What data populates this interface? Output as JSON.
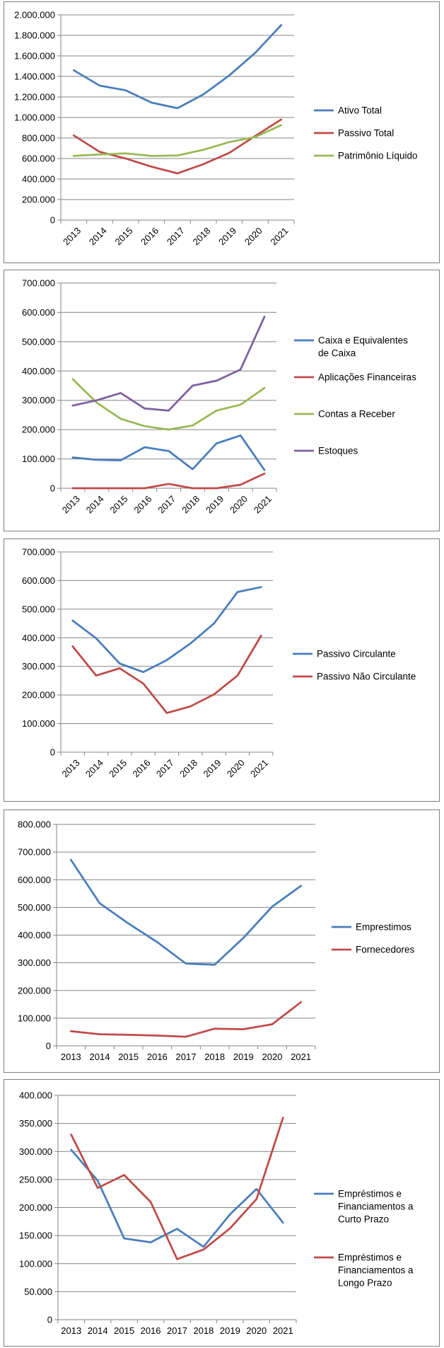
{
  "chart_data": [
    {
      "type": "line",
      "categories": [
        "2013",
        "2014",
        "2015",
        "2016",
        "2017",
        "2018",
        "2019",
        "2020",
        "2021"
      ],
      "ylim": [
        0,
        2000000
      ],
      "yticks": [
        0,
        200000,
        400000,
        600000,
        800000,
        1000000,
        1200000,
        1400000,
        1600000,
        1800000,
        2000000
      ],
      "ytick_labels": [
        "0",
        "200.000",
        "400.000",
        "600.000",
        "800.000",
        "1.000.000",
        "1.200.000",
        "1.400.000",
        "1.600.000",
        "1.800.000",
        "2.000.000"
      ],
      "rotated_x_labels": true,
      "gridlines": true,
      "legend_position": "right",
      "series": [
        {
          "name": "Ativo Total",
          "color": "#4a7ebb",
          "values": [
            1460000,
            1310000,
            1265000,
            1145000,
            1090000,
            1225000,
            1410000,
            1630000,
            1900000
          ]
        },
        {
          "name": "Passivo Total",
          "color": "#be4b48",
          "values": [
            825000,
            665000,
            600000,
            520000,
            455000,
            545000,
            655000,
            820000,
            980000
          ]
        },
        {
          "name": "Patrimônio Líquido",
          "color": "#98b954",
          "values": [
            625000,
            640000,
            650000,
            625000,
            630000,
            685000,
            760000,
            810000,
            925000
          ]
        }
      ]
    },
    {
      "type": "line",
      "categories": [
        "2013",
        "2014",
        "2015",
        "2016",
        "2017",
        "2018",
        "2019",
        "2020",
        "2021"
      ],
      "ylim": [
        0,
        700000
      ],
      "yticks": [
        0,
        100000,
        200000,
        300000,
        400000,
        500000,
        600000,
        700000
      ],
      "ytick_labels": [
        "0",
        "100.000",
        "200.000",
        "300.000",
        "400.000",
        "500.000",
        "600.000",
        "700.000"
      ],
      "rotated_x_labels": true,
      "gridlines": true,
      "legend_position": "right",
      "series": [
        {
          "name": "Caixa e Equivalentes de Caixa",
          "legend_lines": [
            "Caixa e Equivalentes",
            "de Caixa"
          ],
          "color": "#4a7ebb",
          "values": [
            105000,
            97000,
            95000,
            140000,
            127000,
            65000,
            153000,
            180000,
            62000
          ]
        },
        {
          "name": "Aplicações Financeiras",
          "color": "#be4b48",
          "values": [
            0,
            0,
            0,
            0,
            15000,
            0,
            0,
            12000,
            50000
          ]
        },
        {
          "name": "Contas a Receber",
          "color": "#98b954",
          "values": [
            372000,
            292000,
            237000,
            212000,
            200000,
            214000,
            265000,
            285000,
            342000
          ]
        },
        {
          "name": "Estoques",
          "color": "#7d60a0",
          "values": [
            282000,
            300000,
            325000,
            272000,
            265000,
            350000,
            367000,
            405000,
            585000
          ]
        }
      ]
    },
    {
      "type": "line",
      "categories": [
        "2013",
        "2014",
        "2015",
        "2016",
        "2017",
        "2018",
        "2019",
        "2020",
        "2021"
      ],
      "ylim": [
        0,
        700000
      ],
      "yticks": [
        0,
        100000,
        200000,
        300000,
        400000,
        500000,
        600000,
        700000
      ],
      "ytick_labels": [
        "0",
        "100.000",
        "200.000",
        "300.000",
        "400.000",
        "500.000",
        "600.000",
        "700.000"
      ],
      "rotated_x_labels": true,
      "gridlines": true,
      "legend_position": "right",
      "series": [
        {
          "name": "Passivo Circulante",
          "color": "#4a7ebb",
          "values": [
            460000,
            398000,
            310000,
            280000,
            322000,
            380000,
            450000,
            560000,
            577000
          ]
        },
        {
          "name": "Passivo Não Circulante",
          "color": "#be4b48",
          "values": [
            370000,
            268000,
            293000,
            240000,
            137000,
            160000,
            202000,
            268000,
            407000
          ]
        }
      ]
    },
    {
      "type": "line",
      "categories": [
        "2013",
        "2014",
        "2015",
        "2016",
        "2017",
        "2018",
        "2019",
        "2020",
        "2021"
      ],
      "ylim": [
        0,
        800000
      ],
      "yticks": [
        0,
        100000,
        200000,
        300000,
        400000,
        500000,
        600000,
        700000,
        800000
      ],
      "ytick_labels": [
        "0",
        "100.000",
        "200.000",
        "300.000",
        "400.000",
        "500.000",
        "600.000",
        "700.000",
        "800.000"
      ],
      "rotated_x_labels": false,
      "gridlines": true,
      "legend_position": "right",
      "series": [
        {
          "name": "Emprestimos",
          "color": "#4a7ebb",
          "values": [
            672000,
            515000,
            442000,
            375000,
            297000,
            293000,
            390000,
            503000,
            578000
          ]
        },
        {
          "name": "Fornecedores",
          "color": "#be4b48",
          "values": [
            53000,
            42000,
            40000,
            37000,
            33000,
            62000,
            60000,
            78000,
            158000
          ]
        }
      ]
    },
    {
      "type": "line",
      "categories": [
        "2013",
        "2014",
        "2015",
        "2016",
        "2017",
        "2018",
        "2019",
        "2020",
        "2021"
      ],
      "ylim": [
        0,
        400000
      ],
      "yticks": [
        0,
        50000,
        100000,
        150000,
        200000,
        250000,
        300000,
        350000,
        400000
      ],
      "ytick_labels": [
        "0",
        "50.000",
        "100.000",
        "150.000",
        "200.000",
        "250.000",
        "300.000",
        "350.000",
        "400.000"
      ],
      "rotated_x_labels": false,
      "gridlines": true,
      "legend_position": "right",
      "series": [
        {
          "name": "Empréstimos e Financiamentos a Curto Prazo",
          "legend_lines": [
            "Empréstimos e",
            "Financiamentos a",
            "Curto Prazo"
          ],
          "color": "#4a7ebb",
          "values": [
            303000,
            248000,
            145000,
            138000,
            162000,
            130000,
            188000,
            233000,
            173000
          ]
        },
        {
          "name": "Empréstimos e Financiamentos a Longo Prazo",
          "legend_lines": [
            "Empréstimos e",
            "Financiamentos a",
            "Longo Prazo"
          ],
          "color": "#be4b48",
          "values": [
            330000,
            235000,
            258000,
            210000,
            108000,
            125000,
            163000,
            215000,
            360000
          ]
        }
      ]
    }
  ]
}
